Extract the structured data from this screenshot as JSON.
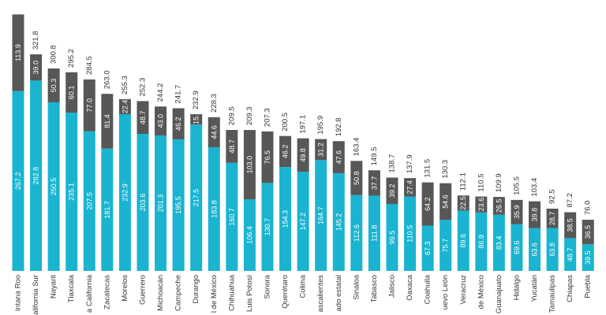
{
  "chart_data": {
    "type": "bar",
    "stacked": true,
    "categories": [
      "Quintana Roo",
      "Baja California Sur",
      "Nayarit",
      "Tlaxcala",
      "Baja California",
      "Zacatecas",
      "Morelos",
      "Guerrero",
      "Michoacán",
      "Campeche",
      "Durango",
      "Estado de México",
      "Chihuahua",
      "San Luis Potosí",
      "Sonora",
      "Querétaro",
      "Colima",
      "Aguascalientes",
      "Promedio estatal",
      "Sinaloa",
      "Tabasco",
      "Jalisco",
      "Oaxaca",
      "Coahuila",
      "Nuevo León",
      "Veracruz",
      "Ciudad de México",
      "Guanajuato",
      "Hidalgo",
      "Yucatán",
      "Tamaulipas",
      "Chiapas",
      "Puebla"
    ],
    "category_labels": [
      "intana Roo",
      "alifornia Sur",
      "Nayarit",
      "Tlaxcala",
      "a California",
      "Zacatecas",
      "Morelos",
      "Guerrero",
      "Michoacán",
      "Campeche",
      "Durango",
      "l de México",
      "Chihuahua",
      "Luis Potosí",
      "Sonora",
      "Querétaro",
      "Colima",
      "ascalientes",
      "ado estatal",
      "Sinaloa",
      "Tabasco",
      "Jalisco",
      "Oaxaca",
      "Coahuila",
      "uevo León",
      "Veracruz",
      "de México",
      "Guanajuato",
      "Hidalgo",
      "Yucatán",
      "Tamaulipas",
      "Chiapas",
      "Puebla"
    ],
    "series": [
      {
        "values": [
          267.2,
          282.8,
          250.5,
          235.1,
          207.5,
          181.7,
          232.9,
          203.6,
          201.3,
          195.5,
          217.5,
          183.8,
          160.7,
          106.4,
          130.7,
          154.3,
          147.2,
          164.7,
          145.2,
          112.6,
          111.8,
          99.5,
          110.5,
          67.3,
          75.7,
          89.6,
          86.9,
          83.4,
          69.6,
          63.6,
          63.8,
          48.7,
          39.5
        ]
      },
      {
        "values": [
          113.9,
          39.0,
          50.3,
          60.1,
          77.0,
          81.4,
          22.4,
          48.7,
          43.0,
          46.2,
          15.4,
          44.6,
          48.7,
          103.0,
          76.5,
          46.2,
          49.8,
          31.2,
          47.6,
          50.8,
          37.7,
          39.2,
          27.4,
          64.2,
          54.6,
          22.5,
          23.6,
          26.5,
          35.9,
          39.8,
          28.7,
          38.5,
          36.5
        ]
      }
    ],
    "series_value_labels": [
      [
        "267.2",
        "282.8",
        "250.5",
        "235.1",
        "207.5",
        "181.7",
        "232.9",
        "203.6",
        "201.3",
        "195.5",
        "217.5",
        "183.8",
        "160.7",
        "106.4",
        "130.7",
        "154.3",
        "147.2",
        "164.7",
        "145.2",
        "112.6",
        "111.8",
        "99.5",
        "110.5",
        "67.3",
        "75.7",
        "89.6",
        "86.9",
        "83.4",
        "69.6",
        "63.6",
        "63.8",
        "48.7",
        "39.5"
      ],
      [
        "113.9",
        "39.0",
        "50.3",
        "60.1",
        "77.0",
        "81.4",
        "22.4",
        "48.7",
        "43.0",
        "46.2",
        "15.",
        "44.6",
        "48.7",
        "103.0",
        "76.5",
        "46.2",
        "49.8",
        "31.2",
        "47.6",
        "50.8",
        "37.7",
        "39.2",
        "27.4",
        "64.2",
        "54.6",
        "22.5",
        "23.6",
        "26.5",
        "35.9",
        "39.8",
        "28.7",
        "38.5",
        "36.5"
      ]
    ],
    "totals": [
      null,
      "321.8",
      "300.8",
      "295.2",
      "284.5",
      "263.0",
      "255.3",
      "252.3",
      "244.2",
      "241.7",
      "232.9",
      "228.3",
      "209.5",
      "209.3",
      "207.3",
      "200.5",
      "197.1",
      "195.9",
      "192.8",
      "163.4",
      "149.5",
      "138.7",
      "137.9",
      "131.5",
      "130.3",
      "112.1",
      "110.5",
      "109.9",
      "105.5",
      "103.4",
      "92.5",
      "87.2",
      "76.0"
    ],
    "ylim": [
      0,
      385
    ],
    "colors": [
      "#1ab4d1",
      "#575757"
    ],
    "grid": false,
    "legend": "none"
  }
}
